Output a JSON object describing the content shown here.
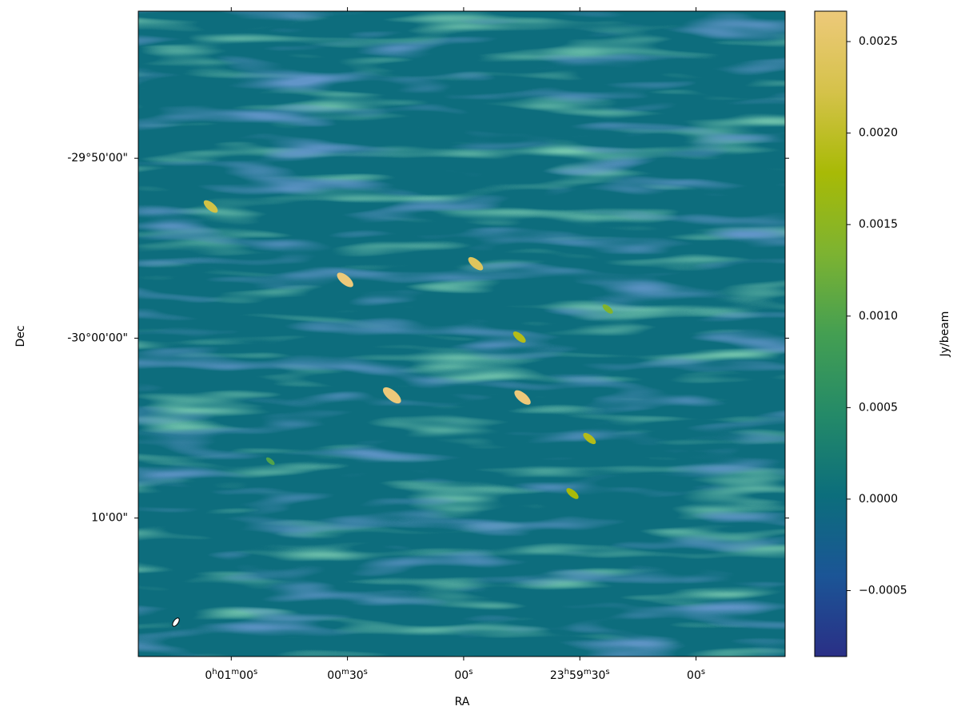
{
  "chart_data": {
    "type": "image",
    "xlabel": "RA",
    "ylabel": "Dec",
    "colorbar_label": "Jy/beam",
    "xlim": [
      84,
      -83
    ],
    "ylim": [
      -30.295,
      -29.697
    ],
    "xticks": [
      {
        "value": 60,
        "label": [
          "0",
          "h",
          "01",
          "m",
          "00",
          "s"
        ]
      },
      {
        "value": 30,
        "label": [
          "00",
          "m",
          "30",
          "s"
        ]
      },
      {
        "value": 0,
        "label": [
          "00",
          "s"
        ]
      },
      {
        "value": -30,
        "label": [
          "23",
          "h",
          "59",
          "m",
          "30",
          "s"
        ]
      },
      {
        "value": -60,
        "label": [
          "00",
          "s"
        ]
      }
    ],
    "yticks": [
      {
        "value": -29.8333,
        "label": "-29°50'00\""
      },
      {
        "value": -30.0,
        "label": "-30°00'00\""
      },
      {
        "value": -30.1667,
        "label": "10'00\""
      }
    ],
    "clim": [
      -0.00086,
      0.002666
    ],
    "cticks": [
      {
        "value": -0.0005,
        "label": "−0.0005"
      },
      {
        "value": 0,
        "label": "0.0000"
      },
      {
        "value": 0.0005,
        "label": "0.0005"
      },
      {
        "value": 0.001,
        "label": "0.0010"
      },
      {
        "value": 0.0015,
        "label": "0.0015"
      },
      {
        "value": 0.002,
        "label": "0.0020"
      },
      {
        "value": 0.0025,
        "label": "0.0025"
      }
    ],
    "colormap": [
      "#2a2f86",
      "#1b5596",
      "#0c6e7c",
      "#248a68",
      "#449f52",
      "#7db331",
      "#a8ba06",
      "#d5c24a",
      "#edc97a"
    ],
    "sources": [
      {
        "ra": 65.3,
        "dec": -29.878,
        "value": 0.0022
      },
      {
        "ra": 30.6,
        "dec": -29.946,
        "value": 0.0027
      },
      {
        "ra": -3.1,
        "dec": -29.931,
        "value": 0.0024
      },
      {
        "ra": 18.5,
        "dec": -30.053,
        "value": 0.0031
      },
      {
        "ra": -14.4,
        "dec": -29.999,
        "value": 0.0019
      },
      {
        "ra": -15.2,
        "dec": -30.055,
        "value": 0.0027
      },
      {
        "ra": -32.5,
        "dec": -30.093,
        "value": 0.0019
      },
      {
        "ra": -28.1,
        "dec": -30.144,
        "value": 0.0018
      },
      {
        "ra": -37.2,
        "dec": -29.973,
        "value": 0.0014
      },
      {
        "ra": 49.9,
        "dec": -30.114,
        "value": 0.001
      }
    ]
  }
}
